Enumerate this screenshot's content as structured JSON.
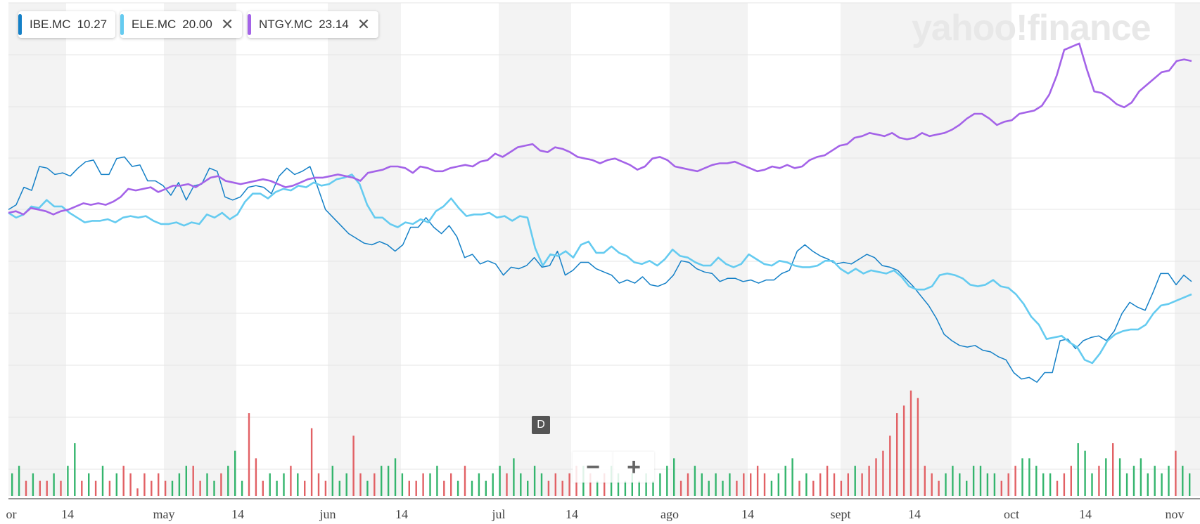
{
  "watermark": "yahoo!finance",
  "legend": [
    {
      "symbol": "IBE.MC",
      "value": "10.27",
      "color": "#1480c7",
      "closable": false
    },
    {
      "symbol": "ELE.MC",
      "value": "20.00",
      "color": "#65cbf0",
      "closable": true,
      "close_icon": "close-icon"
    },
    {
      "symbol": "NTGY.MC",
      "value": "23.14",
      "color": "#a463e8",
      "closable": true,
      "close_icon": "close-icon"
    }
  ],
  "event_marker": "D",
  "zoom": {
    "minus_icon": "minus-icon",
    "plus_icon": "plus-icon"
  },
  "chart_data": {
    "type": "line",
    "x_tick_labels": [
      "or",
      "14",
      "may",
      "14",
      "jun",
      "14",
      "jul",
      "14",
      "ago",
      "14",
      "sept",
      "14",
      "oct",
      "14",
      "nov"
    ],
    "grid": true,
    "legend_position": "top-left",
    "volume_colors": {
      "up": "#34b56d",
      "down": "#e26165"
    },
    "series": [
      {
        "name": "IBE.MC",
        "color": "#1480c7",
        "values": [
          1.0,
          2.5,
          8.0,
          7.0,
          14.5,
          14.0,
          12.0,
          12.5,
          11.5,
          14.0,
          16.0,
          16.5,
          12.0,
          12.0,
          17.0,
          17.5,
          14.5,
          15.0,
          10.0,
          10.0,
          8.5,
          5.5,
          9.5,
          4.0,
          8.5,
          9.0,
          14.0,
          13.0,
          5.0,
          4.0,
          5.0,
          8.0,
          8.5,
          8.0,
          6.0,
          11.5,
          14.0,
          12.0,
          13.0,
          14.5,
          8.0,
          1.0,
          -1.5,
          -4.0,
          -6.5,
          -8.0,
          -9.5,
          -10.0,
          -9.0,
          -10.0,
          -12.0,
          -10.0,
          -4.5,
          -4.5,
          -1.5,
          -4.5,
          -6.5,
          -4.0,
          -7.5,
          -14.0,
          -13.0,
          -16.0,
          -15.0,
          -16.0,
          -19.5,
          -17.0,
          -17.5,
          -16.5,
          -14.0,
          -17.0,
          -16.5,
          -12.0,
          -19.5,
          -18.0,
          -15.5,
          -15.5,
          -17.5,
          -18.5,
          -19.5,
          -22.0,
          -21.0,
          -22.0,
          -20.0,
          -22.5,
          -23.0,
          -22.0,
          -19.5,
          -15.0,
          -15.5,
          -17.5,
          -18.5,
          -19.0,
          -21.5,
          -20.5,
          -20.5,
          -21.5,
          -21.0,
          -22.0,
          -21.0,
          -21.0,
          -19.0,
          -18.0,
          -12.0,
          -10.0,
          -12.0,
          -13.5,
          -14.5,
          -16.0,
          -15.5,
          -16.0,
          -14.5,
          -13.0,
          -14.0,
          -16.5,
          -17.0,
          -18.0,
          -20.5,
          -23.0,
          -26.0,
          -29.0,
          -33.0,
          -38.0,
          -40.0,
          -41.5,
          -42.0,
          -41.5,
          -43.0,
          -43.5,
          -45.0,
          -46.0,
          -50.0,
          -52.0,
          -51.5,
          -53.0,
          -50.0,
          -50.0,
          -40.0,
          -39.5,
          -42.5,
          -40.0,
          -39.0,
          -38.5,
          -40.0,
          -37.0,
          -31.5,
          -28.0,
          -29.5,
          -30.5,
          -25.0,
          -19.0,
          -19.0,
          -22.5,
          -19.5,
          -21.5
        ]
      },
      {
        "name": "ELE.MC",
        "color": "#65cbf0",
        "values": [
          0.0,
          -1.5,
          -0.5,
          2.0,
          1.5,
          4.0,
          2.0,
          2.0,
          0.0,
          -1.5,
          -3.0,
          -2.5,
          -2.5,
          -2.0,
          -3.0,
          -1.5,
          -1.0,
          -1.5,
          -1.0,
          -2.5,
          -3.5,
          -3.5,
          -3.0,
          -4.0,
          -3.0,
          -3.5,
          -0.5,
          -1.5,
          0.0,
          -2.0,
          -0.5,
          3.5,
          6.0,
          6.0,
          4.5,
          6.5,
          7.5,
          7.0,
          8.5,
          8.0,
          9.5,
          8.5,
          9.0,
          10.5,
          11.0,
          12.0,
          9.0,
          2.5,
          -1.5,
          -1.5,
          -3.5,
          -4.5,
          -3.0,
          -3.5,
          -2.0,
          -3.0,
          0.5,
          2.0,
          4.5,
          1.5,
          -1.0,
          -0.5,
          -0.5,
          0.0,
          -1.5,
          -1.0,
          -2.5,
          -1.0,
          -1.5,
          -11.0,
          -16.5,
          -13.0,
          -13.5,
          -12.0,
          -14.0,
          -10.0,
          -9.0,
          -12.5,
          -12.5,
          -10.5,
          -12.5,
          -13.5,
          -15.5,
          -16.0,
          -15.0,
          -16.5,
          -14.5,
          -11.5,
          -13.5,
          -14.0,
          -15.5,
          -16.5,
          -16.5,
          -14.0,
          -16.0,
          -17.0,
          -16.0,
          -13.0,
          -14.5,
          -16.0,
          -16.5,
          -15.0,
          -15.5,
          -16.5,
          -17.0,
          -17.0,
          -16.5,
          -15.0,
          -15.0,
          -17.5,
          -19.0,
          -17.5,
          -19.0,
          -18.0,
          -18.5,
          -19.0,
          -18.0,
          -20.0,
          -23.0,
          -24.0,
          -24.0,
          -23.0,
          -19.5,
          -19.0,
          -19.5,
          -20.5,
          -22.5,
          -23.0,
          -22.5,
          -21.0,
          -23.0,
          -23.5,
          -25.5,
          -28.5,
          -32.5,
          -35.0,
          -39.5,
          -39.0,
          -38.5,
          -40.5,
          -42.0,
          -46.0,
          -47.0,
          -44.0,
          -40.0,
          -38.0,
          -37.0,
          -36.5,
          -36.5,
          -35.0,
          -31.5,
          -29.0,
          -28.5,
          -27.5,
          -26.5,
          -25.5
        ]
      },
      {
        "name": "NTGY.MC",
        "color": "#a463e8",
        "values": [
          0.0,
          0.5,
          -0.5,
          1.5,
          1.0,
          0.5,
          -0.5,
          0.5,
          1.0,
          2.0,
          3.0,
          2.5,
          3.0,
          2.5,
          3.5,
          5.0,
          7.5,
          7.0,
          7.5,
          8.0,
          6.5,
          7.5,
          8.5,
          8.5,
          9.0,
          8.0,
          9.5,
          11.0,
          11.5,
          10.0,
          9.5,
          9.0,
          9.5,
          10.0,
          10.5,
          10.0,
          9.0,
          8.0,
          8.5,
          9.5,
          10.5,
          11.0,
          11.0,
          11.5,
          12.0,
          11.5,
          11.0,
          10.0,
          12.5,
          13.0,
          13.5,
          14.5,
          14.5,
          14.0,
          12.5,
          14.5,
          14.0,
          13.0,
          13.0,
          14.0,
          14.5,
          15.0,
          14.5,
          16.0,
          16.5,
          18.5,
          17.5,
          19.0,
          20.5,
          21.0,
          21.5,
          19.5,
          19.0,
          20.5,
          20.0,
          19.0,
          17.5,
          17.0,
          16.5,
          15.5,
          16.5,
          17.0,
          16.0,
          15.0,
          13.5,
          14.5,
          17.0,
          17.5,
          16.5,
          14.5,
          14.0,
          13.5,
          13.0,
          14.0,
          15.0,
          15.5,
          15.5,
          16.0,
          15.0,
          14.0,
          13.0,
          13.5,
          14.5,
          14.0,
          15.0,
          14.0,
          14.5,
          16.5,
          17.5,
          18.0,
          19.5,
          21.0,
          21.5,
          23.5,
          24.0,
          25.0,
          24.5,
          24.0,
          25.0,
          23.5,
          23.0,
          23.5,
          25.0,
          24.0,
          24.5,
          25.0,
          26.0,
          27.5,
          29.5,
          31.0,
          31.0,
          29.5,
          27.5,
          28.5,
          29.0,
          31.0,
          31.5,
          32.0,
          33.5,
          37.0,
          43.0,
          51.0,
          52.0,
          53.0,
          45.0,
          38.0,
          37.5,
          36.0,
          34.0,
          33.0,
          34.5,
          38.0,
          40.0,
          42.0,
          44.0,
          44.5,
          47.5,
          48.0,
          47.5
        ]
      }
    ],
    "volume": [
      3,
      4,
      2,
      3,
      2,
      2,
      3,
      2,
      4,
      7,
      2,
      3,
      2,
      4,
      2,
      3,
      4,
      3,
      1,
      3,
      2,
      3,
      2,
      2,
      3,
      4,
      4,
      2,
      3,
      2,
      3,
      4,
      6,
      2,
      11,
      5,
      2,
      3,
      2,
      3,
      4,
      3,
      2,
      9,
      3,
      2,
      4,
      2,
      3,
      8,
      3,
      2,
      3,
      4,
      4,
      5,
      3,
      2,
      2,
      3,
      3,
      4,
      2,
      3,
      2,
      4,
      2,
      3,
      2,
      3,
      4,
      3,
      5,
      3,
      2,
      4,
      3,
      2,
      3,
      2,
      3,
      4,
      4,
      3,
      2,
      3,
      4,
      3,
      2,
      3,
      2,
      3,
      2,
      3,
      4,
      5,
      2,
      3,
      4,
      3,
      2,
      3,
      2,
      3,
      2,
      3,
      3,
      4,
      3,
      2,
      3,
      4,
      5,
      2,
      3,
      2,
      3,
      4,
      3,
      2,
      3,
      4,
      3,
      4,
      5,
      6,
      8,
      11,
      12,
      14,
      13,
      4,
      3,
      2,
      3,
      4,
      3,
      2,
      4,
      4,
      3,
      3,
      2,
      3,
      4,
      5,
      5,
      4,
      3,
      3,
      2,
      3,
      4,
      7,
      6,
      3,
      4,
      5,
      7,
      5,
      3,
      4,
      5,
      3,
      4,
      3,
      4,
      6,
      4,
      3
    ],
    "volume_direction": [
      "u",
      "u",
      "d",
      "u",
      "d",
      "d",
      "u",
      "d",
      "u",
      "u",
      "d",
      "u",
      "d",
      "u",
      "d",
      "u",
      "d",
      "d",
      "d",
      "d",
      "d",
      "d",
      "d",
      "u",
      "u",
      "u",
      "d",
      "d",
      "u",
      "u",
      "d",
      "u",
      "u",
      "u",
      "d",
      "d",
      "d",
      "u",
      "u",
      "u",
      "d",
      "u",
      "d",
      "d",
      "d",
      "d",
      "u",
      "u",
      "u",
      "d",
      "d",
      "u",
      "d",
      "u",
      "u",
      "u",
      "u",
      "d",
      "d",
      "d",
      "u",
      "u",
      "d",
      "d",
      "u",
      "d",
      "u",
      "u",
      "u",
      "u",
      "u",
      "d",
      "u",
      "u",
      "u",
      "u",
      "u",
      "d",
      "d",
      "d",
      "d",
      "d",
      "u",
      "d",
      "u",
      "d",
      "u",
      "u",
      "u",
      "u",
      "u",
      "u",
      "u",
      "u",
      "u",
      "u",
      "d",
      "d",
      "u",
      "u",
      "u",
      "u",
      "u",
      "u",
      "d",
      "d",
      "d",
      "d",
      "d",
      "u",
      "u",
      "u",
      "u",
      "d",
      "u",
      "d",
      "d",
      "d",
      "d",
      "d",
      "d",
      "u",
      "d",
      "d",
      "d",
      "d",
      "d",
      "d",
      "d",
      "d",
      "d",
      "d",
      "d",
      "d",
      "u",
      "u",
      "u",
      "u",
      "u",
      "u",
      "u",
      "u",
      "d",
      "d",
      "d",
      "u",
      "u",
      "u",
      "u",
      "u",
      "d",
      "d",
      "d",
      "u",
      "u",
      "u",
      "d",
      "u",
      "d",
      "u",
      "u",
      "u",
      "u",
      "u",
      "u",
      "u",
      "u",
      "d",
      "u",
      "u"
    ]
  }
}
